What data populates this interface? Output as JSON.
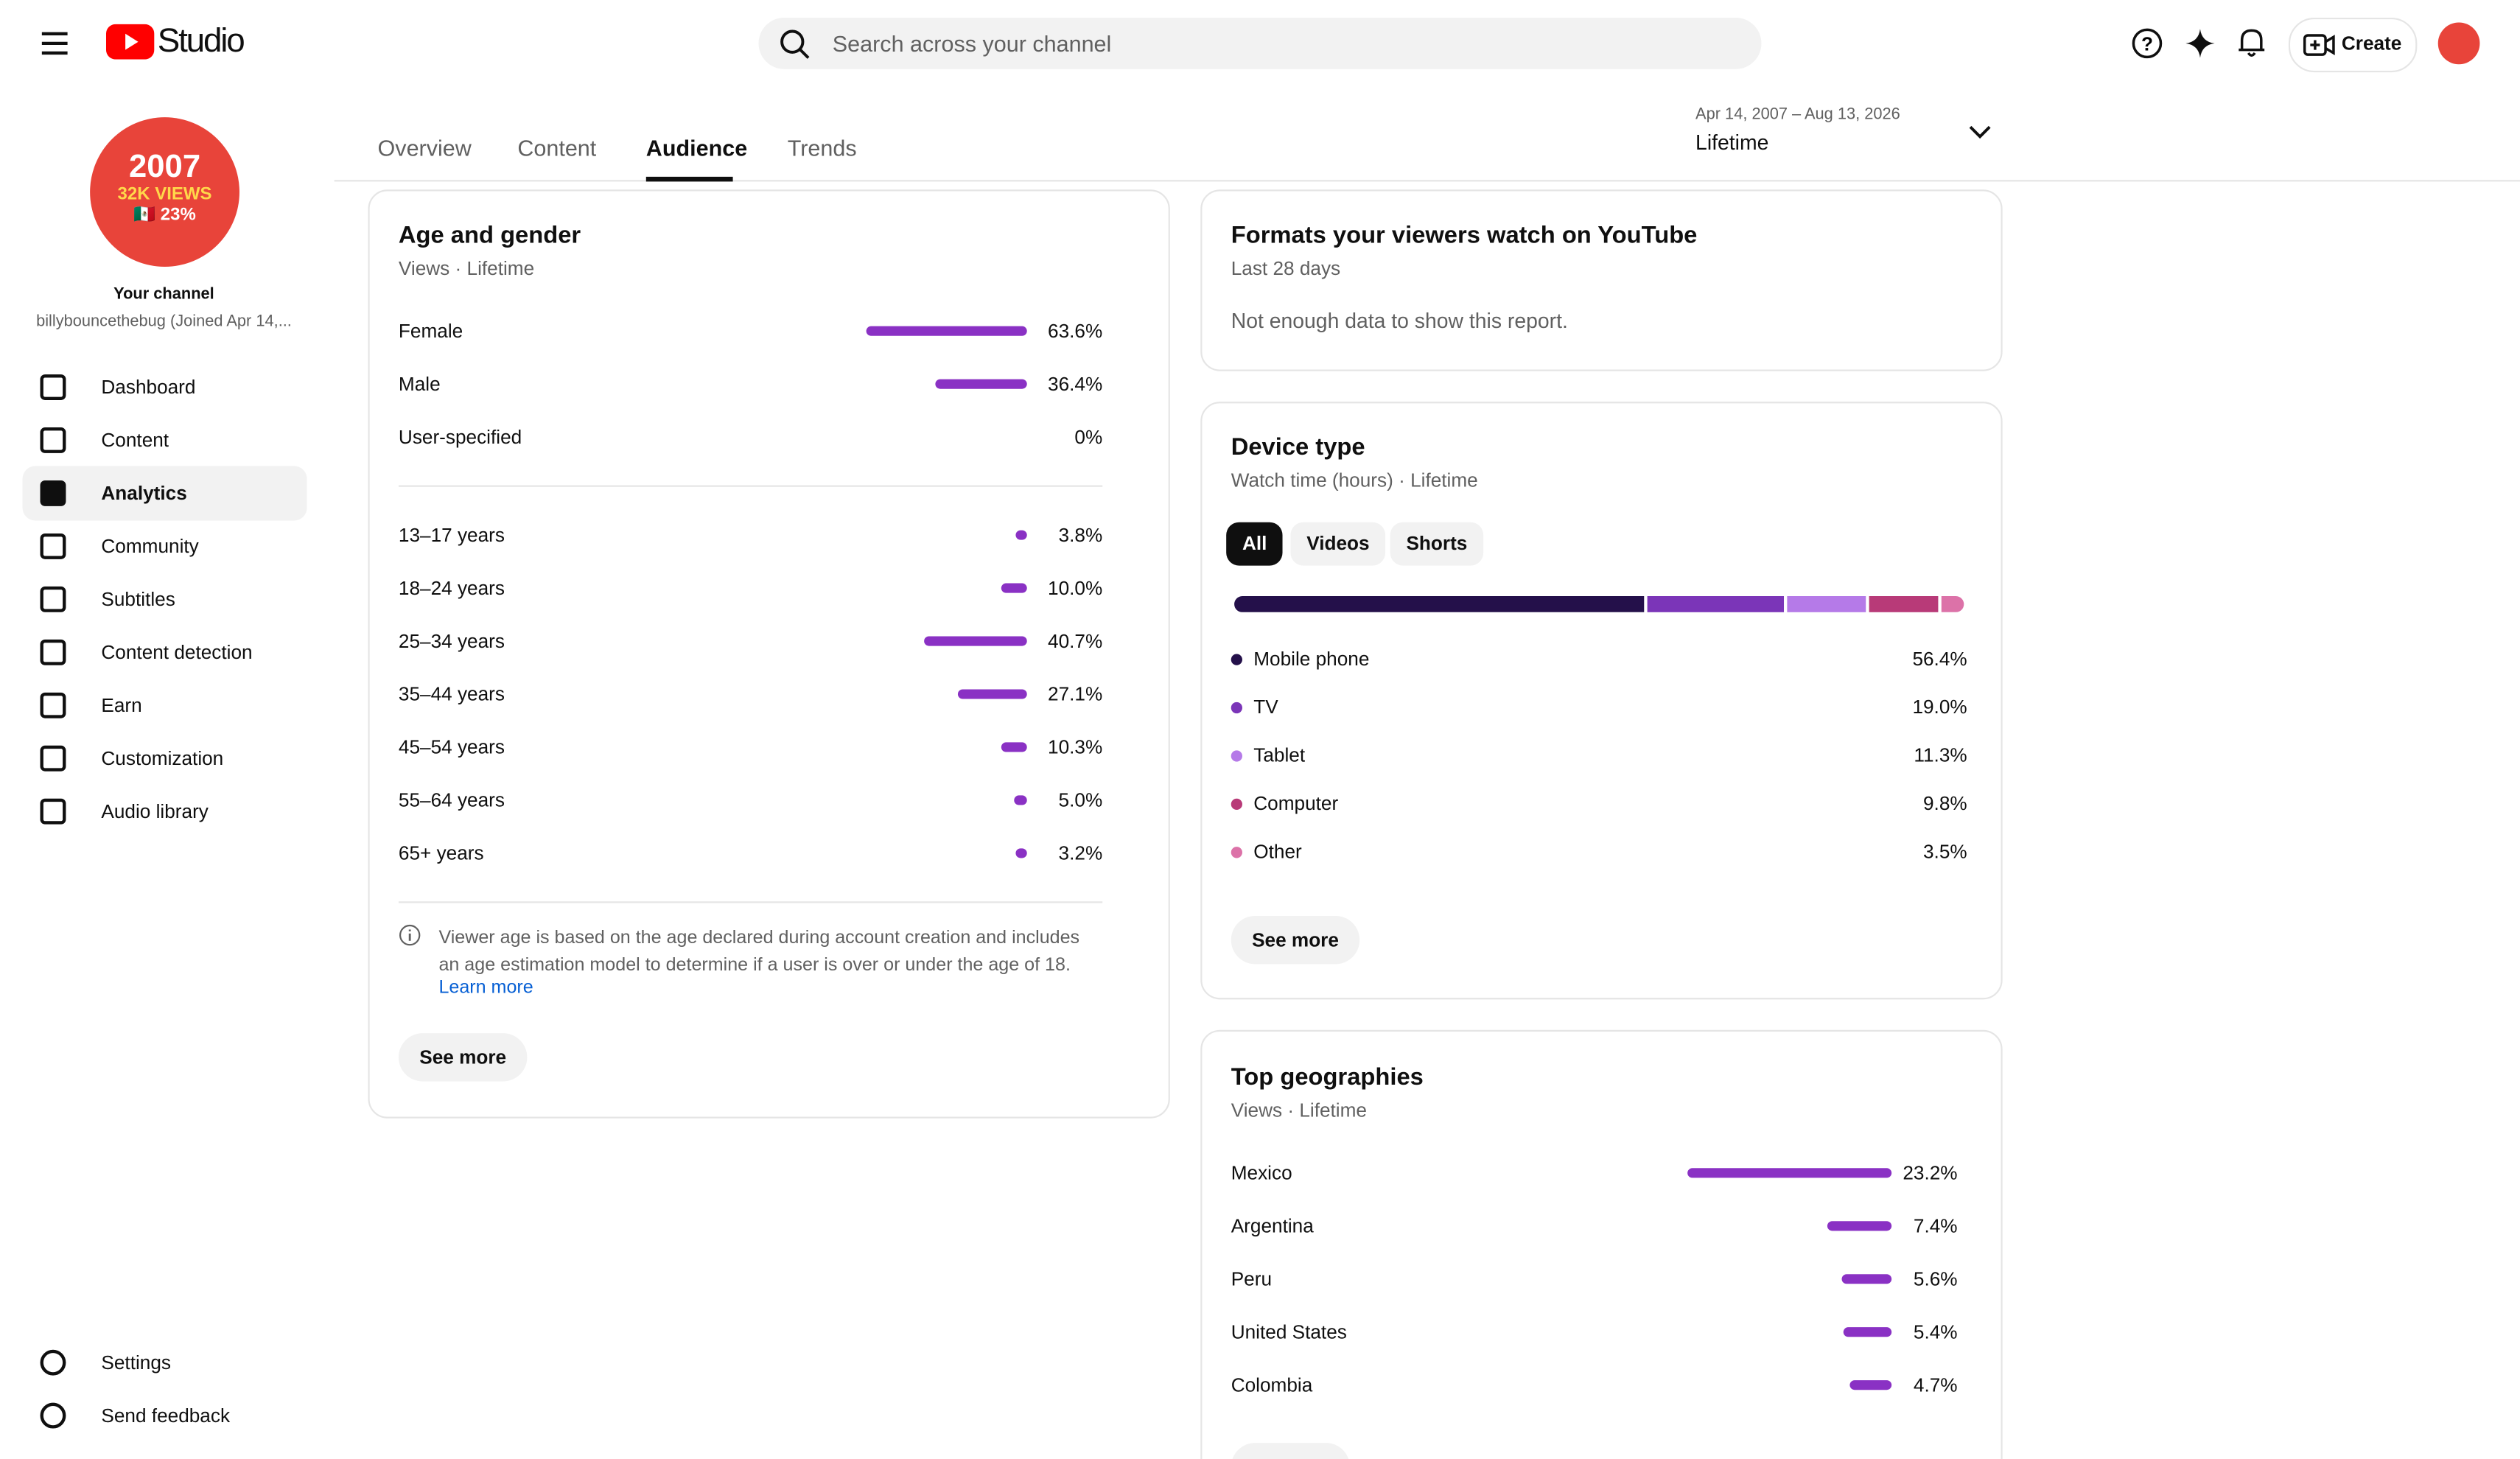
{
  "header": {
    "brand": "Studio",
    "search_placeholder": "Search across your channel",
    "create": "Create"
  },
  "channel": {
    "avatar_lines": [
      "2007",
      "32K VIEWS",
      "🇲🇽 23%"
    ],
    "title": "Your channel",
    "subtitle": "billybouncethebug (Joined Apr 14,..."
  },
  "nav": [
    "Dashboard",
    "Content",
    "Analytics",
    "Community",
    "Subtitles",
    "Content detection",
    "Earn",
    "Customization",
    "Audio library"
  ],
  "nav_bottom": [
    "Settings",
    "Send feedback"
  ],
  "tabs": [
    "Overview",
    "Content",
    "Audience",
    "Trends"
  ],
  "date_range": {
    "range": "Apr 14, 2007 – Aug 13, 2026",
    "label": "Lifetime"
  },
  "age_gender": {
    "title": "Age and gender",
    "subtitle": "Views · Lifetime",
    "gender": [
      {
        "label": "Female",
        "value": 63.6,
        "value_label": "63.6%"
      },
      {
        "label": "Male",
        "value": 36.4,
        "value_label": "36.4%"
      },
      {
        "label": "User-specified",
        "value": 0,
        "value_label": "0%"
      }
    ],
    "age": [
      {
        "label": "13–17 years",
        "value": 3.8,
        "value_label": "3.8%"
      },
      {
        "label": "18–24 years",
        "value": 10.0,
        "value_label": "10.0%"
      },
      {
        "label": "25–34 years",
        "value": 40.7,
        "value_label": "40.7%"
      },
      {
        "label": "35–44 years",
        "value": 27.1,
        "value_label": "27.1%"
      },
      {
        "label": "45–54 years",
        "value": 10.3,
        "value_label": "10.3%"
      },
      {
        "label": "55–64 years",
        "value": 5.0,
        "value_label": "5.0%"
      },
      {
        "label": "65+ years",
        "value": 3.2,
        "value_label": "3.2%"
      }
    ],
    "note": "Viewer age is based on the age declared during account creation and includes an age estimation model to determine if a user is over or under the age of 18.",
    "learn_more": "Learn more",
    "see_more": "See more"
  },
  "formats": {
    "title": "Formats your viewers watch on YouTube",
    "subtitle": "Last 28 days",
    "message": "Not enough data to show this report."
  },
  "device": {
    "title": "Device type",
    "subtitle": "Watch time (hours) · Lifetime",
    "filters": [
      "All",
      "Videos",
      "Shorts"
    ],
    "items": [
      {
        "label": "Mobile phone",
        "value": 56.4,
        "value_label": "56.4%",
        "color": "#24104a"
      },
      {
        "label": "TV",
        "value": 19.0,
        "value_label": "19.0%",
        "color": "#7b35b8"
      },
      {
        "label": "Tablet",
        "value": 11.3,
        "value_label": "11.3%",
        "color": "#b57ae8"
      },
      {
        "label": "Computer",
        "value": 9.8,
        "value_label": "9.8%",
        "color": "#b83a78"
      },
      {
        "label": "Other",
        "value": 3.5,
        "value_label": "3.5%",
        "color": "#dc72a8"
      }
    ],
    "see_more": "See more"
  },
  "geo": {
    "title": "Top geographies",
    "subtitle": "Views · Lifetime",
    "items": [
      {
        "label": "Mexico",
        "value": 23.2,
        "value_label": "23.2%"
      },
      {
        "label": "Argentina",
        "value": 7.4,
        "value_label": "7.4%"
      },
      {
        "label": "Peru",
        "value": 5.6,
        "value_label": "5.6%"
      },
      {
        "label": "United States",
        "value": 5.4,
        "value_label": "5.4%"
      },
      {
        "label": "Colombia",
        "value": 4.7,
        "value_label": "4.7%"
      }
    ]
  }
}
